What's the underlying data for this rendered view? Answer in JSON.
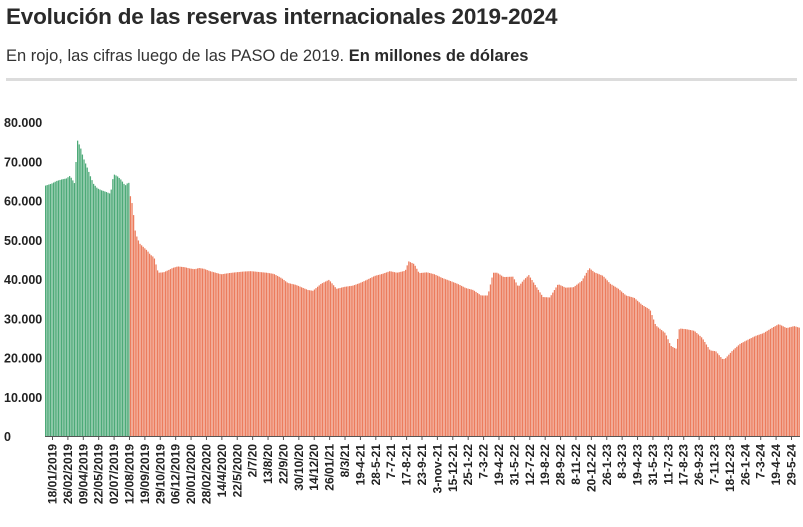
{
  "header": {
    "title": "Evolución de las reservas internacionales 2019-2024",
    "subtitle_plain": "En rojo, las cifras luego de las PASO de 2019.",
    "subtitle_bold": "En millones de dólares"
  },
  "colors": {
    "before_paso": "#4daa78",
    "after_paso": "#ec7c5d",
    "tick_text": "#222222"
  },
  "chart_data": {
    "type": "bar",
    "title": "Evolución de las reservas internacionales 2019-2024",
    "subtitle": "En rojo, las cifras luego de las PASO de 2019. En millones de dólares",
    "xlabel": "",
    "ylabel": "",
    "ylim": [
      0,
      80000
    ],
    "yticks": [
      0,
      10000,
      20000,
      30000,
      40000,
      50000,
      60000,
      70000,
      80000
    ],
    "ytick_labels": [
      "0",
      "10.000",
      "20.000",
      "30.000",
      "40.000",
      "50.000",
      "60.000",
      "70.000",
      "80.000"
    ],
    "grid": false,
    "legend": "none",
    "xtick_labels": [
      "18/01/2019",
      "26/02/2019",
      "09/04/2019",
      "22/05/2019",
      "02/07/2019",
      "12/08/2019",
      "19/09/2019",
      "29/10/2019",
      "06/12/2019",
      "20/01/2020",
      "28/02/2020",
      "14/4/2020",
      "22/5/2020",
      "2/7/20",
      "13/8/20",
      "22/9/20",
      "30/10/20",
      "14/12/20",
      "26/01/21",
      "8/3/21",
      "19-4-21",
      "28-5-21",
      "7-7-21",
      "17-8-21",
      "23-9-21",
      "3-nov-21",
      "15-12-21",
      "25-1-22",
      "7-3-22",
      "19-4-22",
      "31-5-22",
      "12-7-22",
      "19-8-22",
      "28-9-22",
      "8-11-22",
      "20-12-22",
      "26-1-23",
      "8-3-23",
      "19-4-23",
      "31-5-23",
      "11-7-23",
      "17-8-23",
      "26-9-23",
      "7-11-23",
      "18-12-23",
      "26-1-24",
      "7-3-24",
      "19-4-24",
      "29-5-24"
    ],
    "series": [
      {
        "segment": "before_paso",
        "color": "#4daa78",
        "points": [
          {
            "date": "2019-01-02",
            "value": 63800
          },
          {
            "date": "2019-01-18",
            "value": 64300
          },
          {
            "date": "2019-02-01",
            "value": 65000
          },
          {
            "date": "2019-02-15",
            "value": 65400
          },
          {
            "date": "2019-02-26",
            "value": 65600
          },
          {
            "date": "2019-03-08",
            "value": 66300
          },
          {
            "date": "2019-03-20",
            "value": 64400
          },
          {
            "date": "2019-03-28",
            "value": 75300
          },
          {
            "date": "2019-04-05",
            "value": 73500
          },
          {
            "date": "2019-04-12",
            "value": 71000
          },
          {
            "date": "2019-04-22",
            "value": 68600
          },
          {
            "date": "2019-05-02",
            "value": 66000
          },
          {
            "date": "2019-05-10",
            "value": 64200
          },
          {
            "date": "2019-05-20",
            "value": 63100
          },
          {
            "date": "2019-05-31",
            "value": 62600
          },
          {
            "date": "2019-06-12",
            "value": 62200
          },
          {
            "date": "2019-06-24",
            "value": 61700
          },
          {
            "date": "2019-07-02",
            "value": 66700
          },
          {
            "date": "2019-07-12",
            "value": 66200
          },
          {
            "date": "2019-07-22",
            "value": 65300
          },
          {
            "date": "2019-08-02",
            "value": 63800
          },
          {
            "date": "2019-08-09",
            "value": 64500
          }
        ]
      },
      {
        "segment": "after_paso",
        "color": "#ec7c5d",
        "points": [
          {
            "date": "2019-08-12",
            "value": 64000
          },
          {
            "date": "2019-08-16",
            "value": 61000
          },
          {
            "date": "2019-08-21",
            "value": 59000
          },
          {
            "date": "2019-08-26",
            "value": 55000
          },
          {
            "date": "2019-08-29",
            "value": 52000
          },
          {
            "date": "2019-09-03",
            "value": 50500
          },
          {
            "date": "2019-09-10",
            "value": 49000
          },
          {
            "date": "2019-09-19",
            "value": 48200
          },
          {
            "date": "2019-09-30",
            "value": 47200
          },
          {
            "date": "2019-10-08",
            "value": 46200
          },
          {
            "date": "2019-10-18",
            "value": 45500
          },
          {
            "date": "2019-10-29",
            "value": 41600
          },
          {
            "date": "2019-11-12",
            "value": 41700
          },
          {
            "date": "2019-11-26",
            "value": 42300
          },
          {
            "date": "2019-12-06",
            "value": 42800
          },
          {
            "date": "2019-12-20",
            "value": 43200
          },
          {
            "date": "2020-01-08",
            "value": 43000
          },
          {
            "date": "2020-01-20",
            "value": 42700
          },
          {
            "date": "2020-02-03",
            "value": 42500
          },
          {
            "date": "2020-02-15",
            "value": 42800
          },
          {
            "date": "2020-02-28",
            "value": 42600
          },
          {
            "date": "2020-03-15",
            "value": 42000
          },
          {
            "date": "2020-04-14",
            "value": 41200
          },
          {
            "date": "2020-05-04",
            "value": 41500
          },
          {
            "date": "2020-05-22",
            "value": 41700
          },
          {
            "date": "2020-06-12",
            "value": 41900
          },
          {
            "date": "2020-07-02",
            "value": 42000
          },
          {
            "date": "2020-07-22",
            "value": 41800
          },
          {
            "date": "2020-08-13",
            "value": 41600
          },
          {
            "date": "2020-09-01",
            "value": 41300
          },
          {
            "date": "2020-09-22",
            "value": 40200
          },
          {
            "date": "2020-10-08",
            "value": 39000
          },
          {
            "date": "2020-10-30",
            "value": 38500
          },
          {
            "date": "2020-11-16",
            "value": 37800
          },
          {
            "date": "2020-12-01",
            "value": 37200
          },
          {
            "date": "2020-12-14",
            "value": 37000
          },
          {
            "date": "2021-01-05",
            "value": 38800
          },
          {
            "date": "2021-01-26",
            "value": 39800
          },
          {
            "date": "2021-02-15",
            "value": 37500
          },
          {
            "date": "2021-03-08",
            "value": 38000
          },
          {
            "date": "2021-03-30",
            "value": 38300
          },
          {
            "date": "2021-04-19",
            "value": 39000
          },
          {
            "date": "2021-05-07",
            "value": 39800
          },
          {
            "date": "2021-05-28",
            "value": 40800
          },
          {
            "date": "2021-06-17",
            "value": 41300
          },
          {
            "date": "2021-07-07",
            "value": 42000
          },
          {
            "date": "2021-07-26",
            "value": 41600
          },
          {
            "date": "2021-08-17",
            "value": 42100
          },
          {
            "date": "2021-08-26",
            "value": 44500
          },
          {
            "date": "2021-09-10",
            "value": 43800
          },
          {
            "date": "2021-09-23",
            "value": 41500
          },
          {
            "date": "2021-10-14",
            "value": 41700
          },
          {
            "date": "2021-11-03",
            "value": 41200
          },
          {
            "date": "2021-11-25",
            "value": 40200
          },
          {
            "date": "2021-12-15",
            "value": 39500
          },
          {
            "date": "2022-01-05",
            "value": 38700
          },
          {
            "date": "2022-01-25",
            "value": 37700
          },
          {
            "date": "2022-02-14",
            "value": 37200
          },
          {
            "date": "2022-03-07",
            "value": 35800
          },
          {
            "date": "2022-03-25",
            "value": 35800
          },
          {
            "date": "2022-04-08",
            "value": 41600
          },
          {
            "date": "2022-04-19",
            "value": 41600
          },
          {
            "date": "2022-05-06",
            "value": 40500
          },
          {
            "date": "2022-05-31",
            "value": 40600
          },
          {
            "date": "2022-06-14",
            "value": 38000
          },
          {
            "date": "2022-06-29",
            "value": 39800
          },
          {
            "date": "2022-07-12",
            "value": 41000
          },
          {
            "date": "2022-07-29",
            "value": 38500
          },
          {
            "date": "2022-08-19",
            "value": 35400
          },
          {
            "date": "2022-09-06",
            "value": 35300
          },
          {
            "date": "2022-09-28",
            "value": 38700
          },
          {
            "date": "2022-10-18",
            "value": 37800
          },
          {
            "date": "2022-11-08",
            "value": 37900
          },
          {
            "date": "2022-11-30",
            "value": 39500
          },
          {
            "date": "2022-12-20",
            "value": 42800
          },
          {
            "date": "2023-01-03",
            "value": 41700
          },
          {
            "date": "2023-01-26",
            "value": 40800
          },
          {
            "date": "2023-02-14",
            "value": 38800
          },
          {
            "date": "2023-03-08",
            "value": 37500
          },
          {
            "date": "2023-03-28",
            "value": 35800
          },
          {
            "date": "2023-04-19",
            "value": 35200
          },
          {
            "date": "2023-05-10",
            "value": 33400
          },
          {
            "date": "2023-05-31",
            "value": 32200
          },
          {
            "date": "2023-06-15",
            "value": 28200
          },
          {
            "date": "2023-07-11",
            "value": 26200
          },
          {
            "date": "2023-07-25",
            "value": 23000
          },
          {
            "date": "2023-08-08",
            "value": 22200
          },
          {
            "date": "2023-08-17",
            "value": 27400
          },
          {
            "date": "2023-09-05",
            "value": 27200
          },
          {
            "date": "2023-09-26",
            "value": 26800
          },
          {
            "date": "2023-10-17",
            "value": 25000
          },
          {
            "date": "2023-11-07",
            "value": 21800
          },
          {
            "date": "2023-11-22",
            "value": 21600
          },
          {
            "date": "2023-12-11",
            "value": 19500
          },
          {
            "date": "2023-12-18",
            "value": 19800
          },
          {
            "date": "2024-01-05",
            "value": 21700
          },
          {
            "date": "2024-01-26",
            "value": 23500
          },
          {
            "date": "2024-02-15",
            "value": 24500
          },
          {
            "date": "2024-03-07",
            "value": 25500
          },
          {
            "date": "2024-03-28",
            "value": 26200
          },
          {
            "date": "2024-04-19",
            "value": 27500
          },
          {
            "date": "2024-05-08",
            "value": 28500
          },
          {
            "date": "2024-05-29",
            "value": 27500
          },
          {
            "date": "2024-06-18",
            "value": 28000
          },
          {
            "date": "2024-07-05",
            "value": 27500
          }
        ]
      }
    ]
  }
}
